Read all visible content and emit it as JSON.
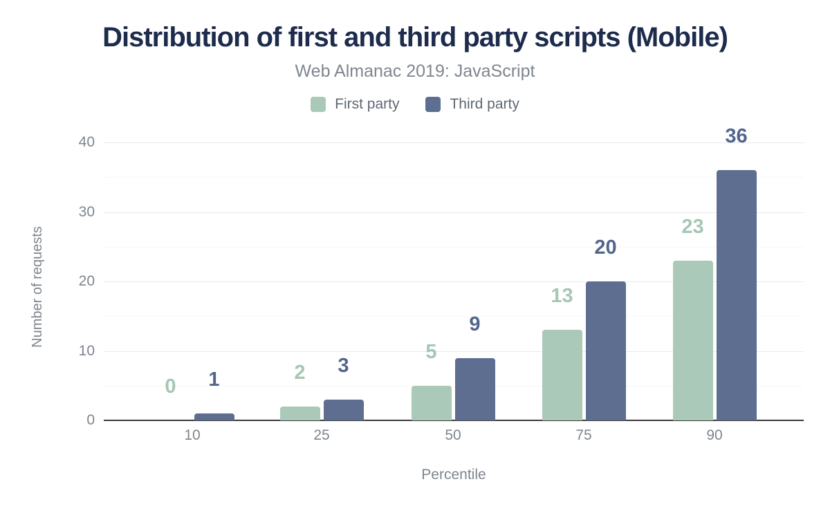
{
  "title": "Distribution of first and third party scripts (Mobile)",
  "subtitle": "Web Almanac 2019: JavaScript",
  "legend": {
    "items": [
      {
        "label": "First party",
        "color": "#aac9b8"
      },
      {
        "label": "Third party",
        "color": "#5e6e91"
      }
    ]
  },
  "chart_data": {
    "type": "bar",
    "title": "Distribution of first and third party scripts (Mobile)",
    "subtitle": "Web Almanac 2019: JavaScript",
    "categories": [
      "10",
      "25",
      "50",
      "75",
      "90"
    ],
    "series": [
      {
        "name": "First party",
        "color": "#aac9b8",
        "label_color": "#a5c7b4",
        "values": [
          0,
          2,
          5,
          13,
          23
        ]
      },
      {
        "name": "Third party",
        "color": "#5e6e91",
        "label_color": "#53658c",
        "values": [
          1,
          3,
          9,
          20,
          36
        ]
      }
    ],
    "xlabel": "Percentile",
    "ylabel": "Number of requests",
    "ylim": [
      0,
      40
    ],
    "yticks": [
      0,
      10,
      20,
      30,
      40
    ],
    "minor_yticks": [
      5,
      15,
      25,
      35
    ],
    "grid": "major solid horizontal every 10, minor dotted every 5",
    "legend_position": "top",
    "data_labels": "above bars, colored per series"
  }
}
